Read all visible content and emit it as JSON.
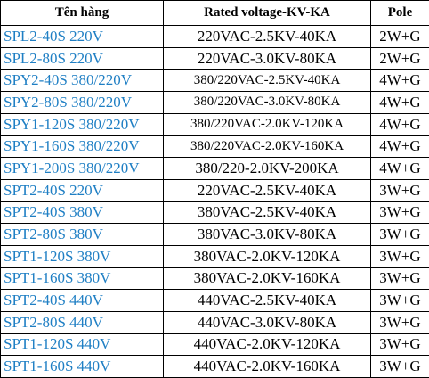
{
  "table": {
    "header": [
      "Tên hàng",
      "Rated voltage-KV-KA",
      "Pole"
    ],
    "rows": [
      [
        "SPL2-40S 220V",
        "220VAC-2.5KV-40KA",
        "2W+G"
      ],
      [
        "SPL2-80S 220V",
        "220VAC-3.0KV-80KA",
        "2W+G"
      ],
      [
        "SPY2-40S 380/220V",
        "380/220VAC-2.5KV-40KA",
        "4W+G"
      ],
      [
        "SPY2-80S 380/220V",
        "380/220VAC-3.0KV-80KA",
        "4W+G"
      ],
      [
        "SPY1-120S 380/220V",
        "380/220VAC-2.0KV-120KA",
        "4W+G"
      ],
      [
        "SPY1-160S 380/220V",
        "380/220VAC-2.0KV-160KA",
        "4W+G"
      ],
      [
        "SPY1-200S 380/220V",
        "380/220-2.0KV-200KA",
        "4W+G"
      ],
      [
        "SPT2-40S 220V",
        "220VAC-2.5KV-40KA",
        "3W+G"
      ],
      [
        "SPT2-40S 380V",
        "380VAC-2.5KV-40KA",
        "3W+G"
      ],
      [
        "SPT2-80S 380V",
        "380VAC-3.0KV-80KA",
        "3W+G"
      ],
      [
        "SPT1-120S 380V",
        "380VAC-2.0KV-120KA",
        "3W+G"
      ],
      [
        "SPT1-160S 380V",
        "380VAC-2.0KV-160KA",
        "3W+G"
      ],
      [
        "SPT2-40S 440V",
        "440VAC-2.5KV-40KA",
        "3W+G"
      ],
      [
        "SPT2-80S 440V",
        "440VAC-3.0KV-80KA",
        "3W+G"
      ],
      [
        "SPT1-120S 440V",
        "440VAC-2.0KV-120KA",
        "3W+G"
      ],
      [
        "SPT1-160S 440V",
        "440VAC-2.0KV-160KA",
        "3W+G"
      ]
    ]
  }
}
